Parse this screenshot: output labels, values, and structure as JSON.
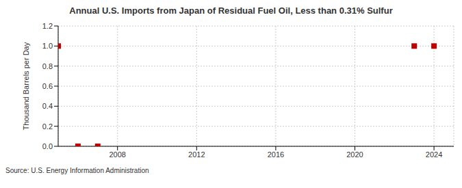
{
  "chart_data": {
    "type": "scatter",
    "title": "Annual U.S. Imports from Japan of Residual Fuel Oil, Less than 0.31% Sulfur",
    "y_label": "Thousand Barrels per Day",
    "source": "Source: U.S. Energy Information Administration",
    "x": [
      2005,
      2006,
      2007,
      2023,
      2024
    ],
    "values": [
      1.0,
      0.0,
      0.0,
      1.0,
      1.0
    ],
    "color": "#c00000",
    "marker": "square",
    "xlim": [
      2005,
      2025
    ],
    "xticks": [
      2008,
      2012,
      2016,
      2020,
      2024
    ],
    "ylim": [
      0,
      1.2
    ],
    "yticks": [
      {
        "value": 0,
        "label": "0.0"
      },
      {
        "value": 0.2,
        "label": "0.2"
      },
      {
        "value": 0.4,
        "label": "0.4"
      },
      {
        "value": 0.6,
        "label": "0.6"
      },
      {
        "value": 0.8,
        "label": "0.8"
      },
      {
        "value": 1.0,
        "label": "1.0"
      },
      {
        "value": 1.2,
        "label": "1.2"
      }
    ],
    "grid": true
  }
}
